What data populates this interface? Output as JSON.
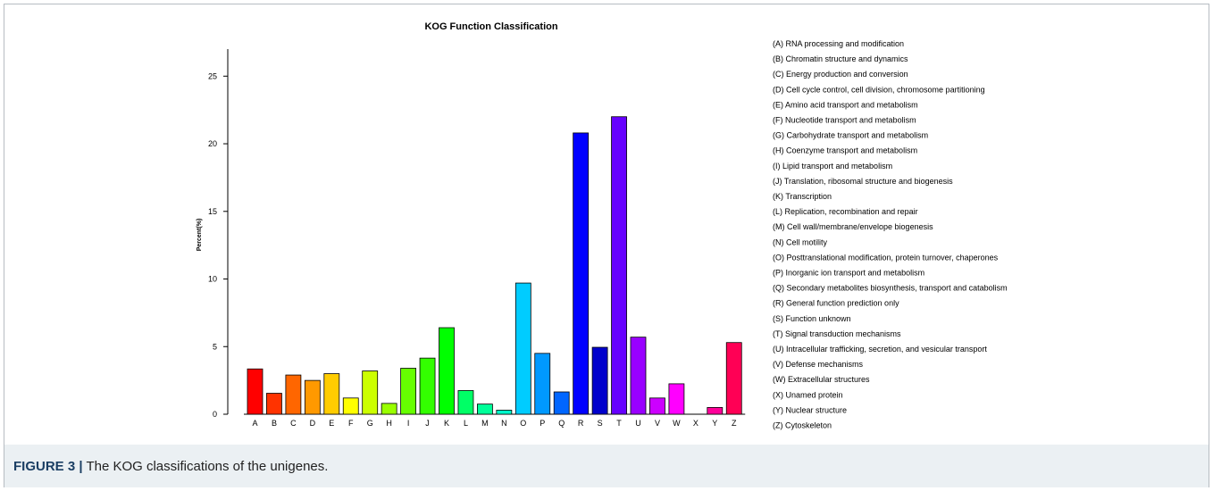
{
  "chart_data": {
    "type": "bar",
    "title": "KOG Function Classification",
    "xlabel": "",
    "ylabel": "Percent(%)",
    "ylim": [
      0,
      27
    ],
    "yticks": [
      0,
      5,
      10,
      15,
      20,
      25
    ],
    "grid": false,
    "legend_position": "right",
    "categories": [
      "A",
      "B",
      "C",
      "D",
      "E",
      "F",
      "G",
      "H",
      "I",
      "J",
      "K",
      "L",
      "M",
      "N",
      "O",
      "P",
      "Q",
      "R",
      "S",
      "T",
      "U",
      "V",
      "W",
      "X",
      "Y",
      "Z"
    ],
    "values": [
      3.35,
      1.55,
      2.9,
      2.5,
      3.0,
      1.2,
      3.2,
      0.8,
      3.4,
      4.15,
      6.4,
      1.75,
      0.75,
      0.3,
      9.7,
      4.5,
      1.65,
      20.8,
      4.95,
      22.0,
      5.7,
      1.2,
      2.25,
      0.0,
      0.5,
      5.3
    ],
    "colors": [
      "#ff0000",
      "#ff3300",
      "#ff6600",
      "#ff9900",
      "#ffcc00",
      "#ffff00",
      "#ccff00",
      "#99ff00",
      "#66ff00",
      "#33ff00",
      "#00ff00",
      "#00ff66",
      "#00ff99",
      "#00ffcc",
      "#00ccff",
      "#0099ff",
      "#0066ff",
      "#0000ff",
      "#0000cc",
      "#6600ff",
      "#9900ff",
      "#cc00ff",
      "#ff00ff",
      "#ff00cc",
      "#ff0099",
      "#ff0055"
    ],
    "legend": [
      "(A) RNA processing and modification",
      "(B) Chromatin structure and dynamics",
      "(C) Energy production and conversion",
      "(D) Cell cycle control, cell division, chromosome partitioning",
      "(E) Amino acid transport and metabolism",
      "(F) Nucleotide transport and metabolism",
      "(G) Carbohydrate transport and metabolism",
      "(H) Coenzyme transport and metabolism",
      "(I) Lipid transport and metabolism",
      "(J) Translation, ribosomal structure and biogenesis",
      "(K) Transcription",
      "(L) Replication, recombination and repair",
      "(M) Cell wall/membrane/envelope biogenesis",
      "(N) Cell motility",
      "(O) Posttranslational modification, protein turnover, chaperones",
      "(P) Inorganic ion transport and metabolism",
      "(Q) Secondary metabolites biosynthesis, transport and catabolism",
      "(R) General function prediction only",
      "(S) Function unknown",
      "(T) Signal transduction mechanisms",
      "(U) Intracellular trafficking, secretion, and vesicular transport",
      "(V) Defense mechanisms",
      "(W) Extracellular structures",
      "(X) Unamed protein",
      "(Y) Nuclear structure",
      "(Z) Cytoskeleton"
    ]
  },
  "caption": {
    "label": "FIGURE 3 |",
    "text": "The KOG classifications of the unigenes."
  }
}
